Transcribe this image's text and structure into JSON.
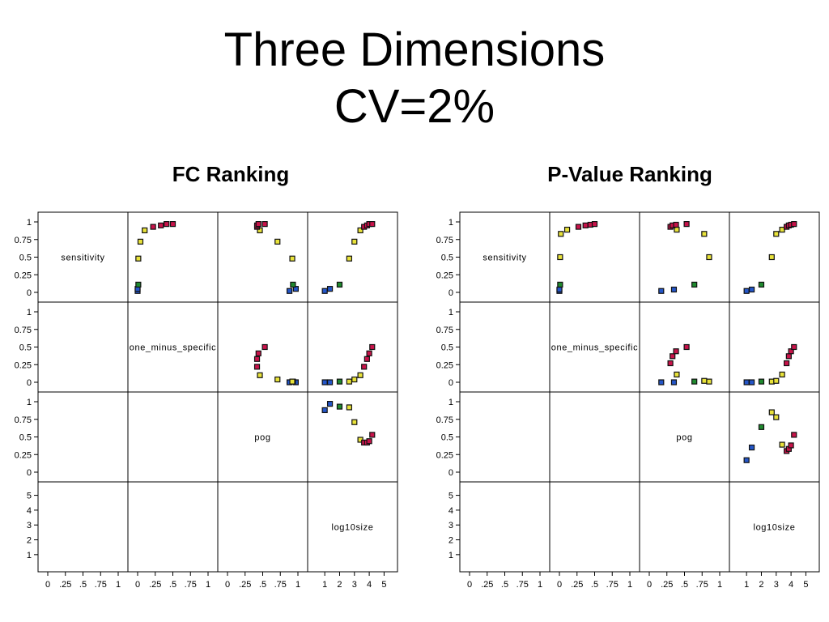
{
  "slide": {
    "title_line1": "Three Dimensions",
    "title_line2": "CV=2%"
  },
  "chart_data": [
    {
      "type": "scatter",
      "title": "FC Ranking",
      "variables": [
        "sensitivity",
        "one_minus_specific",
        "pog",
        "log10size"
      ],
      "axes": {
        "sensitivity": {
          "range": [
            0,
            1
          ],
          "ticks": [
            "0",
            ".25",
            ".5",
            ".75",
            "1"
          ],
          "side_ticks": [
            "0",
            "0.25",
            "0.5",
            "0.75",
            "1"
          ]
        },
        "one_minus_specific": {
          "range": [
            0,
            1
          ],
          "ticks": [
            "0",
            ".25",
            ".5",
            ".75",
            "1"
          ],
          "side_ticks": [
            "0",
            "0.25",
            "0.5",
            "0.75",
            "1"
          ]
        },
        "pog": {
          "range": [
            0,
            1
          ],
          "ticks": [
            "0",
            ".25",
            ".5",
            ".75",
            "1"
          ],
          "side_ticks": [
            "0",
            "0.25",
            "0.5",
            "0.75",
            "1"
          ]
        },
        "log10size": {
          "range": [
            0.5,
            5.25
          ],
          "ticks": [
            "1",
            "2",
            "3",
            "4",
            "5"
          ],
          "side_ticks": [
            "1",
            "2",
            "3",
            "4",
            "5"
          ]
        }
      },
      "colors": {
        "blue": "#2456c8",
        "green": "#1f8a2e",
        "yellow": "#e8e23a",
        "red": "#c8134a"
      },
      "points": [
        {
          "sensitivity": 0.02,
          "one_minus_specific": 0.0,
          "pog": 0.88,
          "log10size": 1.0,
          "group": "blue"
        },
        {
          "sensitivity": 0.05,
          "one_minus_specific": 0.0,
          "pog": 0.97,
          "log10size": 1.35,
          "group": "blue"
        },
        {
          "sensitivity": 0.11,
          "one_minus_specific": 0.01,
          "pog": 0.93,
          "log10size": 2.0,
          "group": "green"
        },
        {
          "sensitivity": 0.48,
          "one_minus_specific": 0.01,
          "pog": 0.92,
          "log10size": 2.65,
          "group": "yellow"
        },
        {
          "sensitivity": 0.72,
          "one_minus_specific": 0.04,
          "pog": 0.71,
          "log10size": 3.0,
          "group": "yellow"
        },
        {
          "sensitivity": 0.88,
          "one_minus_specific": 0.1,
          "pog": 0.46,
          "log10size": 3.4,
          "group": "yellow"
        },
        {
          "sensitivity": 0.93,
          "one_minus_specific": 0.22,
          "pog": 0.42,
          "log10size": 3.65,
          "group": "red"
        },
        {
          "sensitivity": 0.95,
          "one_minus_specific": 0.33,
          "pog": 0.42,
          "log10size": 3.85,
          "group": "red"
        },
        {
          "sensitivity": 0.97,
          "one_minus_specific": 0.41,
          "pog": 0.44,
          "log10size": 4.0,
          "group": "red"
        },
        {
          "sensitivity": 0.97,
          "one_minus_specific": 0.5,
          "pog": 0.53,
          "log10size": 4.2,
          "group": "red"
        }
      ]
    },
    {
      "type": "scatter",
      "title": "P-Value Ranking",
      "variables": [
        "sensitivity",
        "one_minus_specific",
        "pog",
        "log10size"
      ],
      "axes": {
        "sensitivity": {
          "range": [
            0,
            1
          ],
          "ticks": [
            "0",
            ".25",
            ".5",
            ".75",
            "1"
          ],
          "side_ticks": [
            "0",
            "0.25",
            "0.5",
            "0.75",
            "1"
          ]
        },
        "one_minus_specific": {
          "range": [
            0,
            1
          ],
          "ticks": [
            "0",
            ".25",
            ".5",
            ".75",
            "1"
          ],
          "side_ticks": [
            "0",
            "0.25",
            "0.5",
            "0.75",
            "1"
          ]
        },
        "pog": {
          "range": [
            0,
            1
          ],
          "ticks": [
            "0",
            ".25",
            ".5",
            ".75",
            "1"
          ],
          "side_ticks": [
            "0",
            "0.25",
            "0.5",
            "0.75",
            "1"
          ]
        },
        "log10size": {
          "range": [
            0.5,
            5.25
          ],
          "ticks": [
            "1",
            "2",
            "3",
            "4",
            "5"
          ],
          "side_ticks": [
            "1",
            "2",
            "3",
            "4",
            "5"
          ]
        }
      },
      "colors": {
        "blue": "#2456c8",
        "green": "#1f8a2e",
        "yellow": "#e8e23a",
        "red": "#c8134a"
      },
      "points": [
        {
          "sensitivity": 0.02,
          "one_minus_specific": 0.0,
          "pog": 0.17,
          "log10size": 1.0,
          "group": "blue"
        },
        {
          "sensitivity": 0.04,
          "one_minus_specific": 0.0,
          "pog": 0.35,
          "log10size": 1.35,
          "group": "blue"
        },
        {
          "sensitivity": 0.11,
          "one_minus_specific": 0.01,
          "pog": 0.64,
          "log10size": 2.0,
          "group": "green"
        },
        {
          "sensitivity": 0.5,
          "one_minus_specific": 0.01,
          "pog": 0.85,
          "log10size": 2.7,
          "group": "yellow"
        },
        {
          "sensitivity": 0.83,
          "one_minus_specific": 0.02,
          "pog": 0.78,
          "log10size": 3.0,
          "group": "yellow"
        },
        {
          "sensitivity": 0.89,
          "one_minus_specific": 0.11,
          "pog": 0.39,
          "log10size": 3.4,
          "group": "yellow"
        },
        {
          "sensitivity": 0.93,
          "one_minus_specific": 0.27,
          "pog": 0.3,
          "log10size": 3.7,
          "group": "red"
        },
        {
          "sensitivity": 0.95,
          "one_minus_specific": 0.37,
          "pog": 0.33,
          "log10size": 3.85,
          "group": "red"
        },
        {
          "sensitivity": 0.96,
          "one_minus_specific": 0.44,
          "pog": 0.38,
          "log10size": 4.0,
          "group": "red"
        },
        {
          "sensitivity": 0.97,
          "one_minus_specific": 0.5,
          "pog": 0.53,
          "log10size": 4.2,
          "group": "red"
        }
      ]
    }
  ]
}
